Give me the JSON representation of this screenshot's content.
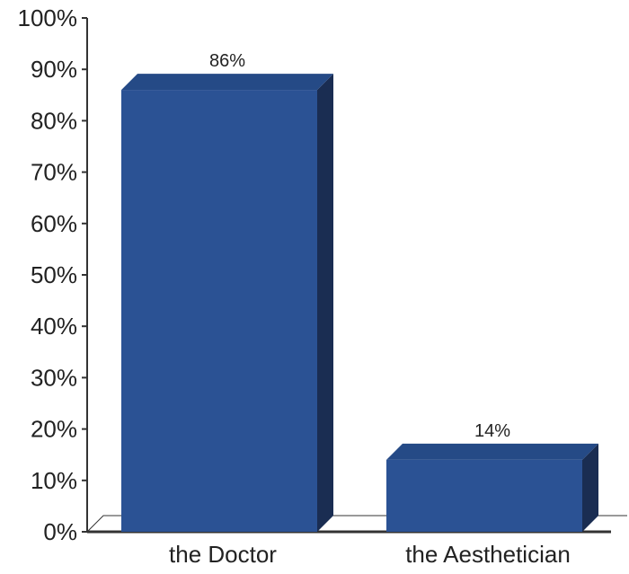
{
  "chart_data": {
    "type": "bar",
    "categories": [
      "the Doctor",
      "the Aesthetician"
    ],
    "values": [
      86,
      14
    ],
    "data_labels": [
      "86%",
      "14%"
    ],
    "ylim": [
      0,
      100
    ],
    "yticks": [
      "0%",
      "10%",
      "20%",
      "30%",
      "40%",
      "50%",
      "60%",
      "70%",
      "80%",
      "90%",
      "100%"
    ],
    "title": "",
    "xlabel": "",
    "ylabel": "",
    "grid": false,
    "style": "3d",
    "colors": {
      "bar_front": "#2B5294",
      "bar_top": "#254A86",
      "bar_side": "#1A2D52",
      "axis": "#333333"
    }
  }
}
